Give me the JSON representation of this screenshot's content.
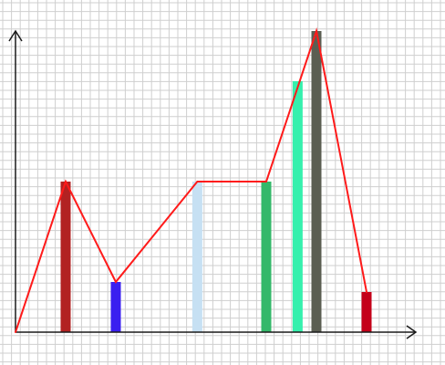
{
  "chart_data": {
    "type": "bar",
    "title": "",
    "xlabel": "",
    "ylabel": "",
    "grid": true,
    "xlim": [
      0,
      16
    ],
    "ylim": [
      0,
      12
    ],
    "bars": [
      {
        "x": 2.0,
        "value": 6.0,
        "color": "#b22222"
      },
      {
        "x": 4.0,
        "value": 2.0,
        "color": "#3a1ff0"
      },
      {
        "x": 7.25,
        "value": 6.0,
        "color": "#c6e0f3"
      },
      {
        "x": 10.0,
        "value": 6.0,
        "color": "#34b86a"
      },
      {
        "x": 11.25,
        "value": 10.0,
        "color": "#35f0ad"
      },
      {
        "x": 12.0,
        "value": 12.0,
        "color": "#5b5e52"
      },
      {
        "x": 14.0,
        "value": 1.6,
        "color": "#c4001a"
      }
    ],
    "line": {
      "color": "#ff1a1a",
      "points": [
        {
          "x": 0.0,
          "y": 0.0
        },
        {
          "x": 2.0,
          "y": 6.0
        },
        {
          "x": 4.0,
          "y": 2.0
        },
        {
          "x": 7.25,
          "y": 6.0
        },
        {
          "x": 10.0,
          "y": 6.0
        },
        {
          "x": 12.0,
          "y": 12.0
        },
        {
          "x": 14.0,
          "y": 1.6
        }
      ]
    }
  }
}
